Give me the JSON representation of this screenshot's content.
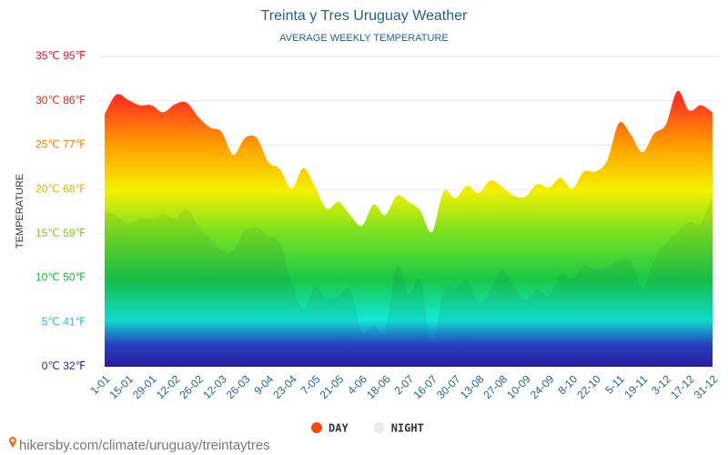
{
  "chart_data": {
    "type": "area",
    "title": "Treinta y Tres Uruguay Weather",
    "subtitle": "AVERAGE WEEKLY TEMPERATURE",
    "y_label": "TEMPERATURE",
    "source": "hikersby.com/climate/uruguay/treintaytres",
    "categories": [
      "1-01",
      null,
      "15-01",
      null,
      "29-01",
      null,
      "12-02",
      null,
      "26-02",
      null,
      "12-03",
      null,
      "26-03",
      null,
      "9-04",
      null,
      "23-04",
      null,
      "7-05",
      null,
      "21-05",
      null,
      "4-06",
      null,
      "18-06",
      null,
      "2-07",
      null,
      "16-07",
      null,
      "30-07",
      null,
      "13-08",
      null,
      "27-08",
      null,
      "10-09",
      null,
      "24-09",
      null,
      "8-10",
      null,
      "22-10",
      null,
      "5-11",
      null,
      "19-11",
      null,
      "3-12",
      null,
      "17-12",
      null,
      "31-12"
    ],
    "series": [
      {
        "name": "DAY",
        "color": "#f04a10",
        "values": [
          28.5,
          30.7,
          30.1,
          29.5,
          29.5,
          28.7,
          29.6,
          29.8,
          28.2,
          27.0,
          26.5,
          23.9,
          25.8,
          25.8,
          23.1,
          22.3,
          20.1,
          22.4,
          20.3,
          17.8,
          18.6,
          17.1,
          15.9,
          18.3,
          17.1,
          19.3,
          18.6,
          17.6,
          15.2,
          19.8,
          19.0,
          20.4,
          19.6,
          21.0,
          20.3,
          19.3,
          19.2,
          20.6,
          20.2,
          21.3,
          20.1,
          22.0,
          22.0,
          23.3,
          27.5,
          26.2,
          24.2,
          26.3,
          27.3,
          31.1,
          28.9,
          29.5,
          28.7
        ]
      },
      {
        "name": "NIGHT",
        "color": "#e6ecf2",
        "values": [
          17.5,
          17.1,
          16.2,
          16.7,
          16.7,
          17.2,
          16.7,
          17.8,
          15.9,
          14.5,
          13.1,
          13.1,
          15.4,
          15.7,
          14.7,
          13.9,
          9.5,
          6.5,
          9.0,
          7.7,
          7.9,
          8.7,
          3.9,
          4.7,
          4.2,
          11.4,
          8.3,
          9.8,
          2.6,
          8.5,
          8.9,
          9.8,
          7.1,
          8.7,
          11.0,
          9.0,
          7.5,
          8.7,
          8.0,
          10.4,
          10.0,
          11.4,
          11.0,
          11.3,
          12.0,
          11.9,
          9.0,
          12.0,
          13.9,
          15.2,
          16.3,
          16.2,
          19.3
        ]
      }
    ],
    "ylim": [
      0,
      35
    ],
    "yticks": [
      {
        "value": 0,
        "label": "0℃ 32℉"
      },
      {
        "value": 5,
        "label": "5℃ 41℉"
      },
      {
        "value": 10,
        "label": "10℃ 50℉"
      },
      {
        "value": 15,
        "label": "15℃ 59℉"
      },
      {
        "value": 20,
        "label": "20℃ 68℉"
      },
      {
        "value": 25,
        "label": "25℃ 77℉"
      },
      {
        "value": 30,
        "label": "30℃ 86℉"
      },
      {
        "value": 35,
        "label": "35℃ 95℉"
      }
    ],
    "grid": true
  }
}
